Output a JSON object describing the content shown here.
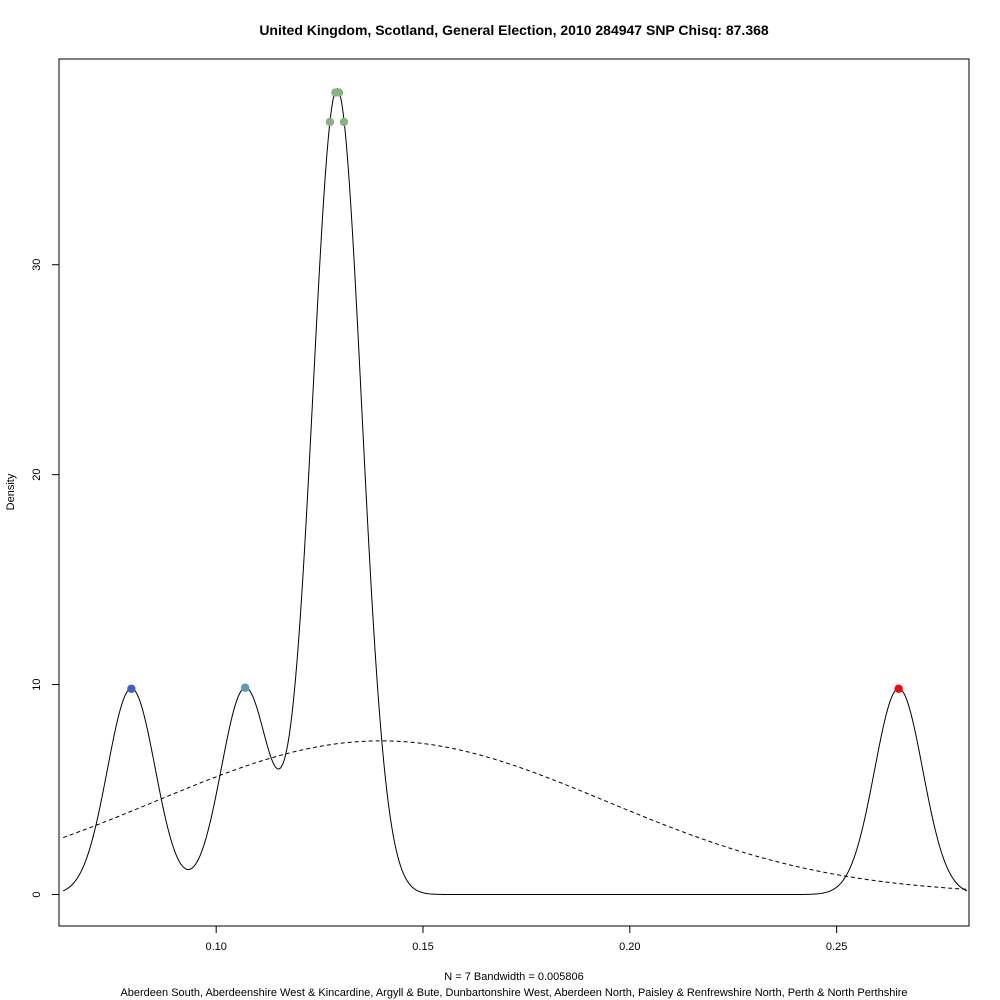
{
  "chart_data": {
    "type": "line",
    "title": "United Kingdom, Scotland, General Election, 2010 284947 SNP Chisq: 87.368",
    "ylabel": "Density",
    "xlabel_line1": "N = 7   Bandwidth = 0.005806",
    "xlabel_line2": "Aberdeen South, Aberdeenshire West & Kincardine, Argyll & Bute, Dunbartonshire West, Aberdeen North, Paisley & Renfrewshire North, Perth & North Perthshire",
    "xlim": [
      0.062,
      0.282
    ],
    "ylim": [
      -1.5,
      39.8
    ],
    "x_ticks": [
      0.1,
      0.15,
      0.2,
      0.25
    ],
    "x_tick_labels": [
      "0.10",
      "0.15",
      "0.20",
      "0.25"
    ],
    "y_ticks": [
      0,
      10,
      20,
      30
    ],
    "y_tick_labels": [
      "0",
      "10",
      "20",
      "30"
    ],
    "bandwidth": 0.005806,
    "n": 7,
    "grid": false,
    "kde_observations": [
      0.0795,
      0.107,
      0.1275,
      0.1288,
      0.1297,
      0.1309,
      0.265
    ],
    "normal_reference": {
      "mean": 0.1398,
      "sd": 0.0545
    },
    "curve_range": [
      0.063,
      0.2815
    ],
    "series": [
      {
        "line": "solid"
      },
      {
        "line": "dashed"
      }
    ],
    "points": [
      {
        "x": 0.0795,
        "y": 9.8,
        "color": "#3b5fcc"
      },
      {
        "x": 0.107,
        "y": 9.85,
        "color": "#5b9bb8"
      },
      {
        "x": 0.1275,
        "y": 36.8,
        "color": "#86b47e"
      },
      {
        "x": 0.1288,
        "y": 38.2,
        "color": "#86b47e"
      },
      {
        "x": 0.1297,
        "y": 38.2,
        "color": "#86b47e"
      },
      {
        "x": 0.1309,
        "y": 36.8,
        "color": "#86b47e"
      },
      {
        "x": 0.265,
        "y": 9.8,
        "color": "#ff0000"
      }
    ]
  }
}
